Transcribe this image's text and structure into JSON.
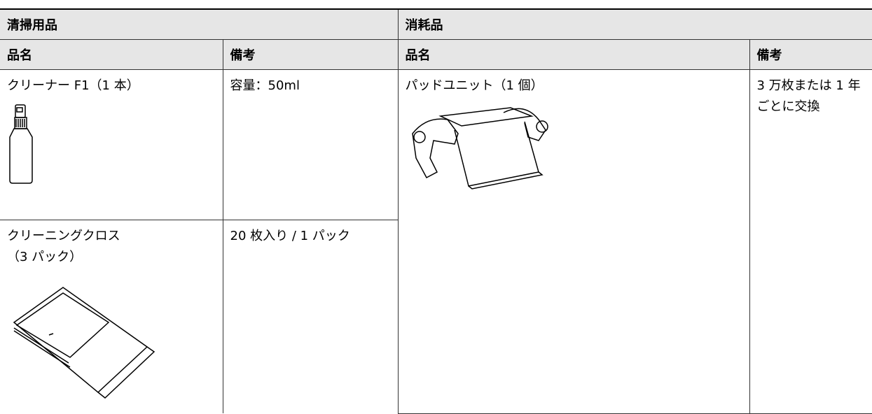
{
  "table": {
    "groups": [
      "清掃用品",
      "消耗品"
    ],
    "header": [
      "品名",
      "備考",
      "品名",
      "備考"
    ],
    "rows": [
      [
        "クリーナー F1（1 本）",
        "容量：50ml",
        "パッドユニット（1 個）",
        "3 万枚または 1 年ごとに交換"
      ],
      [
        [
          "クリーニングクロス",
          "（3 パック）"
        ],
        "20 枚入り / 1 パック"
      ]
    ]
  }
}
